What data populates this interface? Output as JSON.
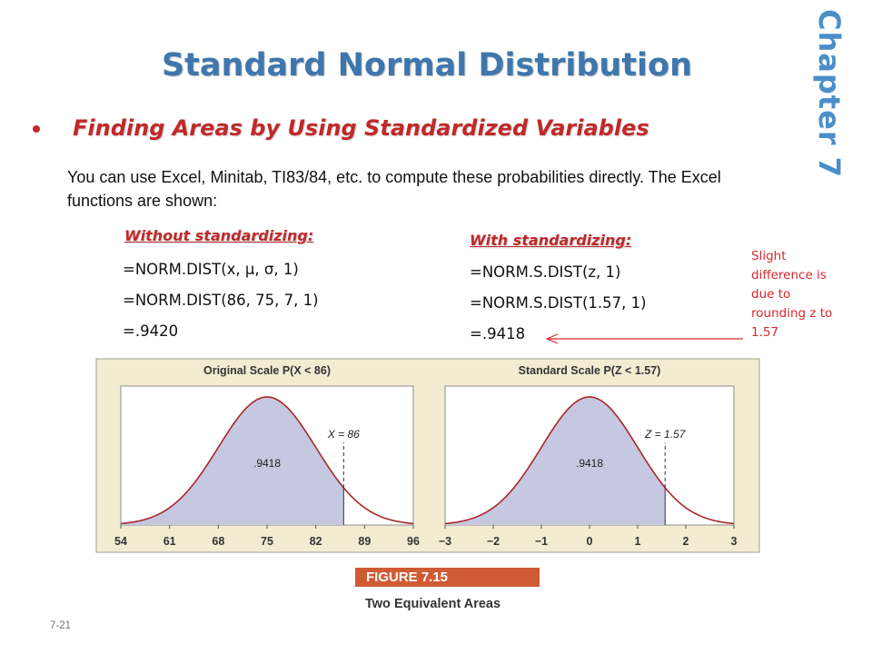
{
  "slide": {
    "title": "Standard Normal Distribution",
    "chapter_label": "Chapter 7",
    "bullet": "Finding Areas by Using Standardized Variables",
    "intro": "You can use Excel, Minitab, TI83/84, etc. to compute these probabilities directly. The Excel functions are shown:",
    "without": {
      "header": "Without standardizing:",
      "lines": [
        "=NORM.DIST(x, μ, σ, 1)",
        "=NORM.DIST(86, 75, 7, 1)",
        "=.9420"
      ]
    },
    "with": {
      "header": "With standardizing:",
      "lines": [
        "=NORM.S.DIST(z, 1)",
        "=NORM.S.DIST(1.57, 1)",
        "=.9418"
      ]
    },
    "note": "Slight difference is due to rounding z to 1.57",
    "figure_label": "FIGURE 7.15",
    "figure_caption": "Two Equivalent Areas",
    "slide_number": "7-21"
  },
  "colors": {
    "title": "#3d77ad",
    "accent_red": "#c0292a",
    "curve": "#a8272a",
    "shade": "#c5c8e0",
    "figure_bg": "#f3ecd3",
    "figure_bar": "#cf5b35"
  },
  "chart_data": [
    {
      "type": "area",
      "title": "Original Scale P(X < 86)",
      "x_ticks": [
        "54",
        "61",
        "68",
        "75",
        "82",
        "89",
        "96"
      ],
      "xlim": [
        54,
        96
      ],
      "mean": 75,
      "sd": 7,
      "cutoff": 86,
      "cutoff_label": "X = 86",
      "shaded_area_label": ".9418"
    },
    {
      "type": "area",
      "title": "Standard Scale P(Z < 1.57)",
      "x_ticks": [
        "−3",
        "−2",
        "−1",
        "0",
        "1",
        "2",
        "3"
      ],
      "xlim": [
        -3,
        3
      ],
      "mean": 0,
      "sd": 1,
      "cutoff": 1.57,
      "cutoff_label": "Z = 1.57",
      "shaded_area_label": ".9418"
    }
  ]
}
